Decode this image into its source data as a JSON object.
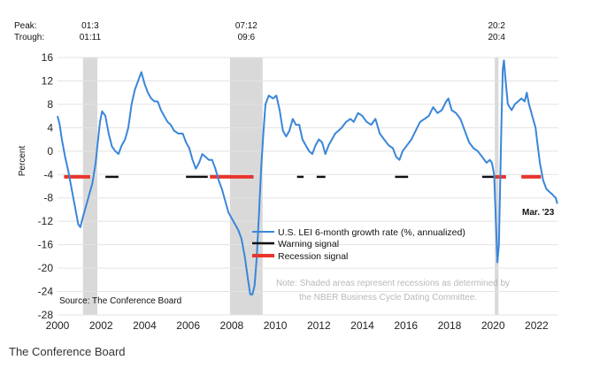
{
  "caption": "The Conference Board",
  "chart_data": {
    "type": "line",
    "ylabel": "Percent",
    "ylim": [
      -28,
      16
    ],
    "xlim": [
      2000,
      2023.0
    ],
    "yticks": [
      16,
      12,
      8,
      4,
      0,
      -4,
      -8,
      -12,
      -16,
      -20,
      -24,
      -28
    ],
    "xticks": [
      2000,
      2002,
      2004,
      2006,
      2008,
      2010,
      2012,
      2014,
      2016,
      2018,
      2020,
      2022
    ],
    "peak_trough_labels": {
      "peak": "Peak:",
      "trough": "Trough:"
    },
    "recessions": [
      {
        "start": 2001.17,
        "end": 2001.83,
        "peak": "01:3",
        "trough": "01:11"
      },
      {
        "start": 2007.92,
        "end": 2009.42,
        "peak": "07:12",
        "trough": "09:6"
      },
      {
        "start": 2020.08,
        "end": 2020.25,
        "peak": "20:2",
        "trough": "20:4"
      }
    ],
    "signal_level": -4.4,
    "warning_signal": [
      [
        2002.2,
        2002.8
      ],
      [
        2005.9,
        2006.9
      ],
      [
        2011.0,
        2011.3
      ],
      [
        2011.9,
        2012.3
      ],
      [
        2015.5,
        2016.1
      ],
      [
        2019.5,
        2020.1
      ]
    ],
    "recession_signal": [
      [
        2000.3,
        2001.5
      ],
      [
        2007.0,
        2009.0
      ],
      [
        2020.1,
        2020.6
      ],
      [
        2021.3,
        2022.2
      ]
    ],
    "series": [
      {
        "name": "U.S. LEI 6-month growth rate (%, annualized)",
        "color": "#3a86d9",
        "points": [
          [
            2000.0,
            6.0
          ],
          [
            2000.1,
            4.5
          ],
          [
            2000.2,
            2.0
          ],
          [
            2000.35,
            -1.0
          ],
          [
            2000.5,
            -3.5
          ],
          [
            2000.65,
            -6.5
          ],
          [
            2000.8,
            -9.5
          ],
          [
            2000.95,
            -12.5
          ],
          [
            2001.05,
            -13.0
          ],
          [
            2001.15,
            -11.5
          ],
          [
            2001.3,
            -9.5
          ],
          [
            2001.45,
            -7.5
          ],
          [
            2001.6,
            -5.5
          ],
          [
            2001.75,
            -2.0
          ],
          [
            2001.85,
            1.5
          ],
          [
            2001.95,
            5.0
          ],
          [
            2002.05,
            6.8
          ],
          [
            2002.2,
            6.0
          ],
          [
            2002.35,
            3.0
          ],
          [
            2002.5,
            0.8
          ],
          [
            2002.65,
            0.0
          ],
          [
            2002.8,
            -0.5
          ],
          [
            2002.95,
            1.0
          ],
          [
            2003.1,
            2.0
          ],
          [
            2003.25,
            4.0
          ],
          [
            2003.4,
            8.0
          ],
          [
            2003.55,
            10.5
          ],
          [
            2003.7,
            12.0
          ],
          [
            2003.85,
            13.5
          ],
          [
            2004.0,
            11.5
          ],
          [
            2004.15,
            10.0
          ],
          [
            2004.3,
            9.0
          ],
          [
            2004.45,
            8.5
          ],
          [
            2004.6,
            8.5
          ],
          [
            2004.75,
            7.0
          ],
          [
            2004.9,
            6.0
          ],
          [
            2005.05,
            5.0
          ],
          [
            2005.2,
            4.5
          ],
          [
            2005.35,
            3.5
          ],
          [
            2005.55,
            3.0
          ],
          [
            2005.75,
            3.0
          ],
          [
            2005.9,
            1.5
          ],
          [
            2006.05,
            0.5
          ],
          [
            2006.2,
            -1.5
          ],
          [
            2006.35,
            -3.0
          ],
          [
            2006.5,
            -2.0
          ],
          [
            2006.65,
            -0.5
          ],
          [
            2006.8,
            -1.0
          ],
          [
            2006.95,
            -1.5
          ],
          [
            2007.1,
            -1.5
          ],
          [
            2007.25,
            -3.0
          ],
          [
            2007.4,
            -5.0
          ],
          [
            2007.55,
            -6.5
          ],
          [
            2007.7,
            -8.5
          ],
          [
            2007.85,
            -10.5
          ],
          [
            2008.0,
            -11.5
          ],
          [
            2008.15,
            -12.5
          ],
          [
            2008.3,
            -13.5
          ],
          [
            2008.45,
            -15.0
          ],
          [
            2008.6,
            -18.0
          ],
          [
            2008.75,
            -22.0
          ],
          [
            2008.85,
            -24.5
          ],
          [
            2008.95,
            -24.5
          ],
          [
            2009.05,
            -23.0
          ],
          [
            2009.15,
            -18.0
          ],
          [
            2009.25,
            -11.0
          ],
          [
            2009.35,
            -3.0
          ],
          [
            2009.45,
            3.0
          ],
          [
            2009.55,
            8.0
          ],
          [
            2009.7,
            9.5
          ],
          [
            2009.9,
            9.0
          ],
          [
            2010.05,
            9.5
          ],
          [
            2010.2,
            7.0
          ],
          [
            2010.35,
            3.5
          ],
          [
            2010.5,
            2.5
          ],
          [
            2010.65,
            3.5
          ],
          [
            2010.8,
            5.5
          ],
          [
            2010.95,
            4.5
          ],
          [
            2011.1,
            4.5
          ],
          [
            2011.25,
            2.0
          ],
          [
            2011.4,
            1.0
          ],
          [
            2011.55,
            0.0
          ],
          [
            2011.7,
            -0.5
          ],
          [
            2011.85,
            1.0
          ],
          [
            2012.0,
            2.0
          ],
          [
            2012.15,
            1.5
          ],
          [
            2012.3,
            -0.5
          ],
          [
            2012.45,
            1.0
          ],
          [
            2012.6,
            2.0
          ],
          [
            2012.75,
            3.0
          ],
          [
            2012.9,
            3.5
          ],
          [
            2013.05,
            4.0
          ],
          [
            2013.25,
            5.0
          ],
          [
            2013.45,
            5.5
          ],
          [
            2013.6,
            5.0
          ],
          [
            2013.8,
            6.5
          ],
          [
            2014.0,
            6.0
          ],
          [
            2014.2,
            5.0
          ],
          [
            2014.4,
            4.5
          ],
          [
            2014.6,
            5.5
          ],
          [
            2014.8,
            3.0
          ],
          [
            2015.0,
            2.0
          ],
          [
            2015.2,
            1.0
          ],
          [
            2015.4,
            0.5
          ],
          [
            2015.55,
            -1.0
          ],
          [
            2015.7,
            -1.5
          ],
          [
            2015.85,
            0.0
          ],
          [
            2016.05,
            1.0
          ],
          [
            2016.25,
            2.0
          ],
          [
            2016.45,
            3.5
          ],
          [
            2016.65,
            5.0
          ],
          [
            2016.85,
            5.5
          ],
          [
            2017.05,
            6.0
          ],
          [
            2017.25,
            7.5
          ],
          [
            2017.45,
            6.5
          ],
          [
            2017.65,
            7.0
          ],
          [
            2017.85,
            8.5
          ],
          [
            2017.95,
            9.0
          ],
          [
            2018.1,
            7.0
          ],
          [
            2018.3,
            6.5
          ],
          [
            2018.5,
            5.5
          ],
          [
            2018.7,
            3.5
          ],
          [
            2018.9,
            1.5
          ],
          [
            2019.1,
            0.5
          ],
          [
            2019.3,
            0.0
          ],
          [
            2019.5,
            -1.0
          ],
          [
            2019.7,
            -2.0
          ],
          [
            2019.85,
            -1.5
          ],
          [
            2019.95,
            -2.0
          ],
          [
            2020.05,
            -4.0
          ],
          [
            2020.15,
            -14.0
          ],
          [
            2020.2,
            -19.0
          ],
          [
            2020.27,
            -16.0
          ],
          [
            2020.33,
            -5.0
          ],
          [
            2020.4,
            7.0
          ],
          [
            2020.45,
            14.0
          ],
          [
            2020.5,
            15.5
          ],
          [
            2020.58,
            12.0
          ],
          [
            2020.68,
            8.0
          ],
          [
            2020.85,
            7.0
          ],
          [
            2021.0,
            8.0
          ],
          [
            2021.15,
            8.5
          ],
          [
            2021.3,
            9.0
          ],
          [
            2021.45,
            8.5
          ],
          [
            2021.55,
            10.0
          ],
          [
            2021.65,
            8.0
          ],
          [
            2021.8,
            6.0
          ],
          [
            2021.95,
            4.0
          ],
          [
            2022.05,
            1.0
          ],
          [
            2022.15,
            -2.0
          ],
          [
            2022.3,
            -5.0
          ],
          [
            2022.45,
            -6.5
          ],
          [
            2022.6,
            -7.0
          ],
          [
            2022.75,
            -7.5
          ],
          [
            2022.88,
            -8.0
          ],
          [
            2022.95,
            -9.0
          ]
        ]
      },
      {
        "name": "Warning signal",
        "color": "#111111"
      },
      {
        "name": "Recession signal",
        "color": "#e8342c"
      }
    ],
    "end_label": "Mar. '23",
    "source": "Source: The Conference Board",
    "note_lines": [
      "Note: Shaded areas represent recessions as determined by",
      "the NBER Business Cycle Dating Committee."
    ]
  }
}
